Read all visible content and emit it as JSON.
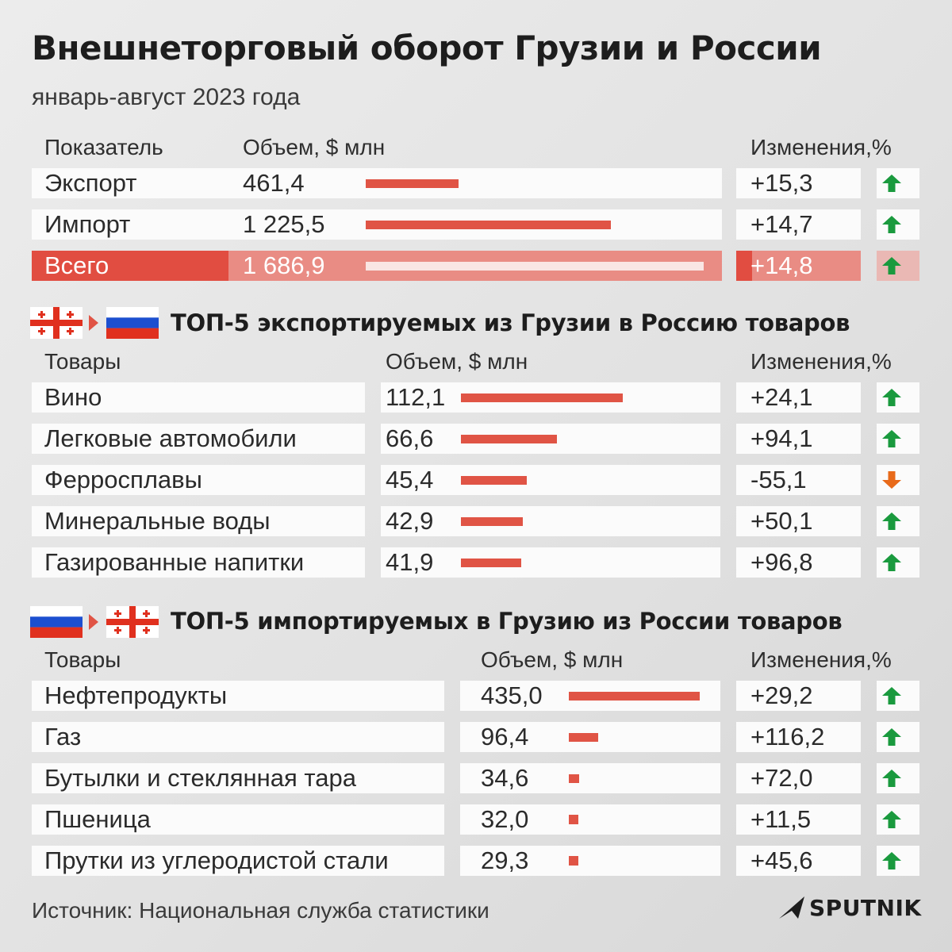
{
  "title": "Внешнеторговый оборот Грузии и России",
  "subtitle": "январь-август 2023 года",
  "colors": {
    "bar": "#e05445",
    "up": "#1a9a3e",
    "down": "#e86a1a",
    "highlight": "#e14d41"
  },
  "icons": [
    "georgia-flag-icon",
    "russia-flag-icon",
    "arrow-right-icon",
    "arrow-up-icon",
    "arrow-down-icon",
    "sputnik-logo-icon"
  ],
  "chart_data": [
    {
      "type": "table",
      "headers": {
        "label": "Показатель",
        "value": "Объем, $ млн",
        "change": "Изменения,%"
      },
      "max": 1686.9,
      "rows": [
        {
          "label": "Экспорт",
          "value": 461.4,
          "value_text": "461,4",
          "change": 15.3,
          "change_text": "+15,3"
        },
        {
          "label": "Импорт",
          "value": 1225.5,
          "value_text": "1 225,5",
          "change": 14.7,
          "change_text": "+14,7"
        },
        {
          "label": "Всего",
          "value": 1686.9,
          "value_text": "1 686,9",
          "change": 14.8,
          "change_text": "+14,8"
        }
      ]
    },
    {
      "type": "table",
      "title": "ТОП-5 экспортируемых из Грузии в Россию товаров",
      "headers": {
        "label": "Товары",
        "value": "Объем, $ млн",
        "change": "Изменения,%"
      },
      "max": 112.1,
      "rows": [
        {
          "label": "Вино",
          "value": 112.1,
          "value_text": "112,1",
          "change": 24.1,
          "change_text": "+24,1"
        },
        {
          "label": "Легковые автомобили",
          "value": 66.6,
          "value_text": "66,6",
          "change": 94.1,
          "change_text": "+94,1"
        },
        {
          "label": "Ферросплавы",
          "value": 45.4,
          "value_text": "45,4",
          "change": -55.1,
          "change_text": "-55,1"
        },
        {
          "label": "Минеральные воды",
          "value": 42.9,
          "value_text": "42,9",
          "change": 50.1,
          "change_text": "+50,1"
        },
        {
          "label": "Газированные напитки",
          "value": 41.9,
          "value_text": "41,9",
          "change": 96.8,
          "change_text": "+96,8"
        }
      ]
    },
    {
      "type": "table",
      "title": "ТОП-5 импортируемых в Грузию из России товаров",
      "headers": {
        "label": "Товары",
        "value": "Объем, $ млн",
        "change": "Изменения,%"
      },
      "max": 435.0,
      "rows": [
        {
          "label": "Нефтепродукты",
          "value": 435.0,
          "value_text": "435,0",
          "change": 29.2,
          "change_text": "+29,2"
        },
        {
          "label": "Газ",
          "value": 96.4,
          "value_text": "96,4",
          "change": 116.2,
          "change_text": "+116,2"
        },
        {
          "label": "Бутылки и стеклянная тара",
          "value": 34.6,
          "value_text": "34,6",
          "change": 72.0,
          "change_text": "+72,0"
        },
        {
          "label": "Пшеница",
          "value": 32.0,
          "value_text": "32,0",
          "change": 11.5,
          "change_text": "+11,5"
        },
        {
          "label": "Прутки из углеродистой стали",
          "value": 29.3,
          "value_text": "29,3",
          "change": 45.6,
          "change_text": "+45,6"
        }
      ]
    }
  ],
  "source": "Источник: Национальная служба статистики",
  "logo": "SPUTNIK"
}
